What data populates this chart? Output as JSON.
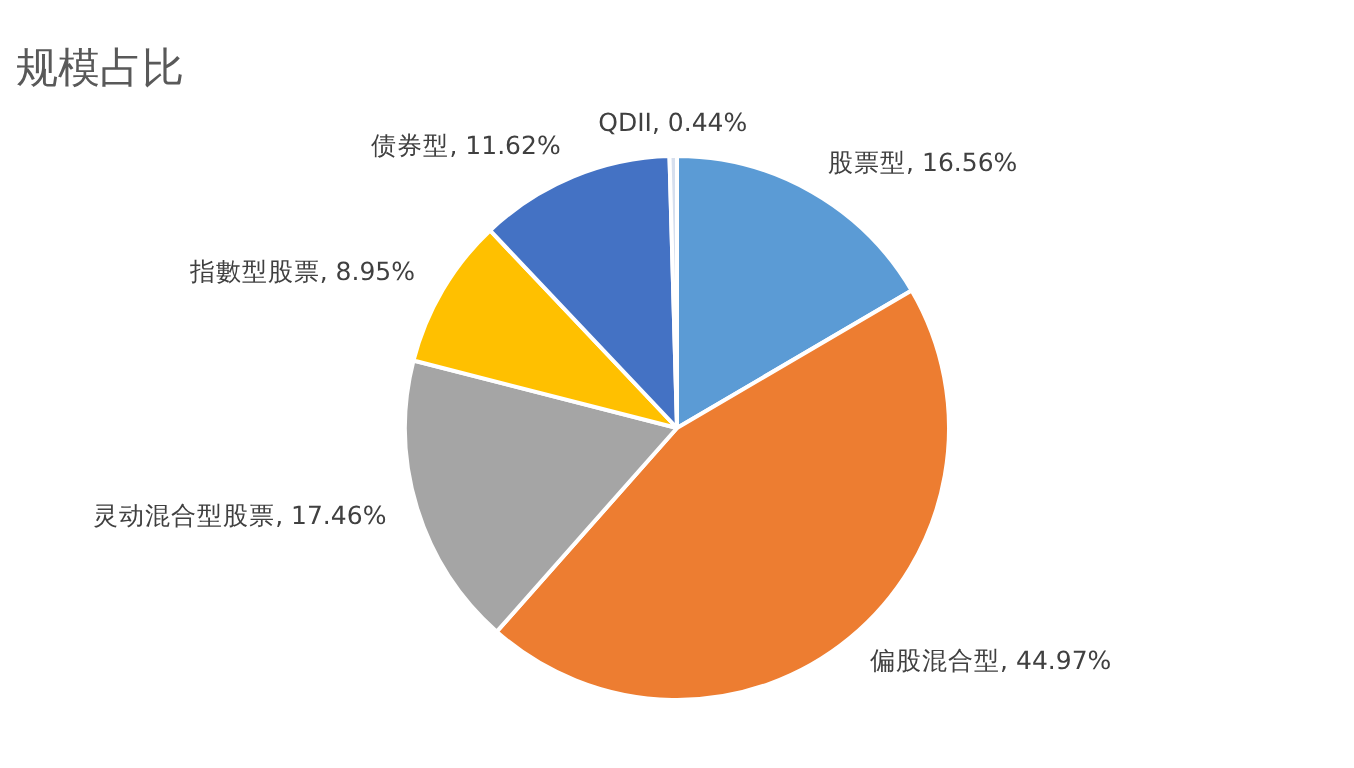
{
  "chart_data": {
    "type": "pie",
    "title": "规模占比",
    "categories": [
      "股票型",
      "偏股混合型",
      "灵动混合型股票",
      "指數型股票",
      "债券型",
      "QDII"
    ],
    "values": [
      16.56,
      44.97,
      17.46,
      8.95,
      11.62,
      0.44
    ],
    "value_labels": [
      "16.56%",
      "44.97%",
      "17.46%",
      "8.95%",
      "11.62%",
      "0.44%"
    ],
    "colors": [
      "#5b9bd5",
      "#ed7d31",
      "#a5a5a5",
      "#ffc000",
      "#4472c4",
      "#d6dfee"
    ],
    "legend": false
  }
}
